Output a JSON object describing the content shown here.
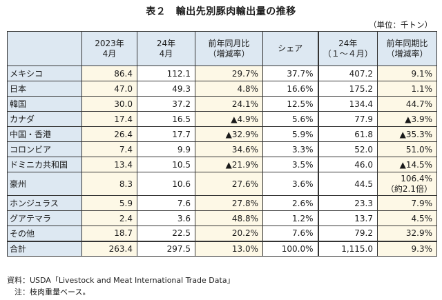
{
  "title": "表２　輸出先別豚肉輸出量の推移",
  "unit": "（単位：千トン）",
  "headers": {
    "col_2023": "2023年\n4月",
    "col_24": "24年\n4月",
    "col_yoy": "前年同月比\n（増減率）",
    "col_share": "シェア",
    "col_24ytd": "24年\n（１～４月）",
    "col_yoy_period": "前年同期比\n（増減率）"
  },
  "rows": [
    {
      "label": "メキシコ",
      "v2023": "86.4",
      "v24": "112.1",
      "yoy": "29.7%",
      "share": "37.7%",
      "ytd": "407.2",
      "yoyp": "9.1%"
    },
    {
      "label": "日本",
      "v2023": "47.0",
      "v24": "49.3",
      "yoy": "4.8%",
      "share": "16.6%",
      "ytd": "175.2",
      "yoyp": "1.1%"
    },
    {
      "label": "韓国",
      "v2023": "30.0",
      "v24": "37.2",
      "yoy": "24.1%",
      "share": "12.5%",
      "ytd": "134.4",
      "yoyp": "44.7%"
    },
    {
      "label": "カナダ",
      "v2023": "17.4",
      "v24": "16.5",
      "yoy": "▲4.9%",
      "share": "5.6%",
      "ytd": "77.9",
      "yoyp": "▲3.9%"
    },
    {
      "label": "中国・香港",
      "v2023": "26.4",
      "v24": "17.7",
      "yoy": "▲32.9%",
      "share": "5.9%",
      "ytd": "61.8",
      "yoyp": "▲35.3%"
    },
    {
      "label": "コロンビア",
      "v2023": "7.4",
      "v24": "9.9",
      "yoy": "34.6%",
      "share": "3.3%",
      "ytd": "52.0",
      "yoyp": "51.0%"
    },
    {
      "label": "ドミニカ共和国",
      "v2023": "13.4",
      "v24": "10.5",
      "yoy": "▲21.9%",
      "share": "3.5%",
      "ytd": "46.0",
      "yoyp": "▲14.5%"
    },
    {
      "label": "豪州",
      "v2023": "8.3",
      "v24": "10.6",
      "yoy": "27.6%",
      "share": "3.6%",
      "ytd": "44.5",
      "yoyp": "106.4%\n（約2.1倍）"
    },
    {
      "label": "ホンジュラス",
      "v2023": "5.9",
      "v24": "7.6",
      "yoy": "27.8%",
      "share": "2.6%",
      "ytd": "23.3",
      "yoyp": "7.9%"
    },
    {
      "label": "グアテマラ",
      "v2023": "2.4",
      "v24": "3.6",
      "yoy": "48.8%",
      "share": "1.2%",
      "ytd": "13.7",
      "yoyp": "4.5%"
    },
    {
      "label": "その他",
      "v2023": "18.7",
      "v24": "22.5",
      "yoy": "20.2%",
      "share": "7.6%",
      "ytd": "79.2",
      "yoyp": "32.9%"
    },
    {
      "label": "合計",
      "v2023": "263.4",
      "v24": "297.5",
      "yoy": "13.0%",
      "share": "100.0%",
      "ytd": "1,115.0",
      "yoyp": "9.3%"
    }
  ],
  "notes": {
    "source": "資料：USDA「Livestock and Meat International Trade Data」",
    "note": "　注：枝肉重量ベース。"
  },
  "colors": {
    "header_bg": "#dde8f2",
    "row_bg": "#fdf8e6"
  }
}
